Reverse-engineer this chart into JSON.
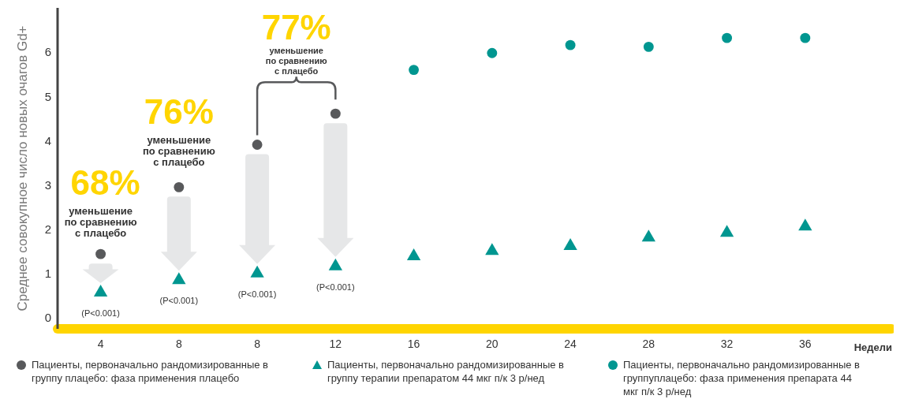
{
  "chart_data": {
    "type": "scatter",
    "ylabel": "Среднее совокупное число новых очагов Gd+",
    "xlabel": "Недели",
    "categories": [
      "4",
      "8",
      "8",
      "12",
      "16",
      "20",
      "24",
      "28",
      "32",
      "36"
    ],
    "series": [
      {
        "name": "Пациенты, первоначально рандомизированные в группу плацебо: фаза применения плацебо",
        "color": "#58595b",
        "marker": "circle",
        "values": [
          1.44,
          2.95,
          3.91,
          4.61,
          null,
          null,
          null,
          null,
          null,
          null
        ]
      },
      {
        "name": "Пациенты, первоначально рандомизированные в группу терапии препаратом 44 мкг п/к 3 р/нед",
        "color": "#009690",
        "marker": "triangle",
        "values": [
          0.57,
          0.85,
          1.0,
          1.16,
          1.39,
          1.51,
          1.62,
          1.81,
          1.92,
          2.06
        ]
      },
      {
        "name": "Пациенты, первоначально рандомизированные в группуплацебо: фаза применения препарата 44 мкг п/к 3 р/нед",
        "color": "#009690",
        "marker": "circle",
        "values": [
          null,
          null,
          null,
          null,
          5.6,
          5.98,
          6.16,
          6.12,
          6.32,
          6.32
        ]
      }
    ],
    "ylim": [
      -0.25,
      7
    ],
    "yticks": [
      0,
      1,
      2,
      3,
      4,
      5,
      6
    ],
    "grid": false,
    "legend": "bottom",
    "annotations": [
      "68%",
      "уменьшение\nпо сравнению\nс плацебо",
      "76%",
      "уменьшение\nпо сравнению\nс плацебо",
      "77%",
      "уменьшение\nпо сравнению\nс плацебо",
      "(P<0.001)",
      "(P<0.001)",
      "(P<0.001)",
      "(P<0.001)"
    ]
  }
}
